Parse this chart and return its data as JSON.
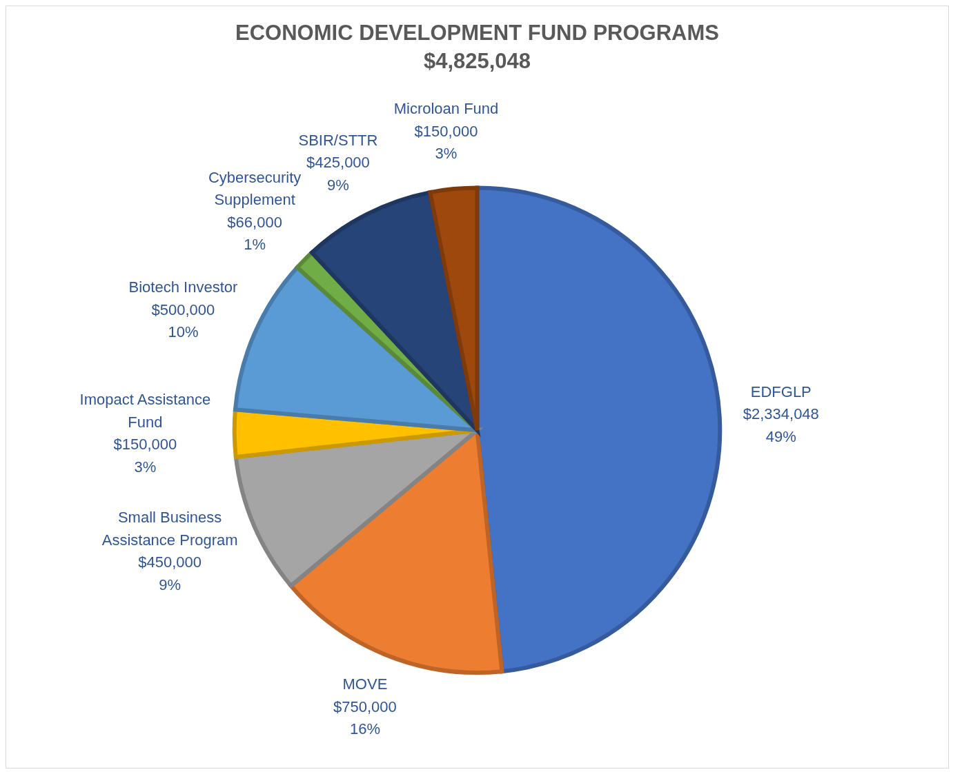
{
  "chart_data": {
    "type": "pie",
    "title": "ECONOMIC DEVELOPMENT FUND PROGRAMS",
    "subtitle": "$4,825,048",
    "categories": [
      "EDFGLP",
      "MOVE",
      "Small Business Assistance Program",
      "Imopact Assistance Fund",
      "Biotech Investor",
      "Cybersecurity Supplement",
      "SBIR/STTR",
      "Microloan Fund"
    ],
    "values": [
      2334048,
      750000,
      450000,
      150000,
      500000,
      66000,
      425000,
      150000
    ],
    "colors": [
      "#4472c4",
      "#ed7d31",
      "#a5a5a5",
      "#ffc000",
      "#5b9bd5",
      "#70ad47",
      "#264478",
      "#9e480e"
    ],
    "value_labels": [
      "$2,334,048\n49%",
      "$750,000\n16%",
      "$450,000\n9%",
      "$150,000\n3%",
      "$500,000\n10%",
      "$66,000\n1%",
      "$425,000\n9%",
      "$150,000\n3%"
    ],
    "legend": false
  }
}
